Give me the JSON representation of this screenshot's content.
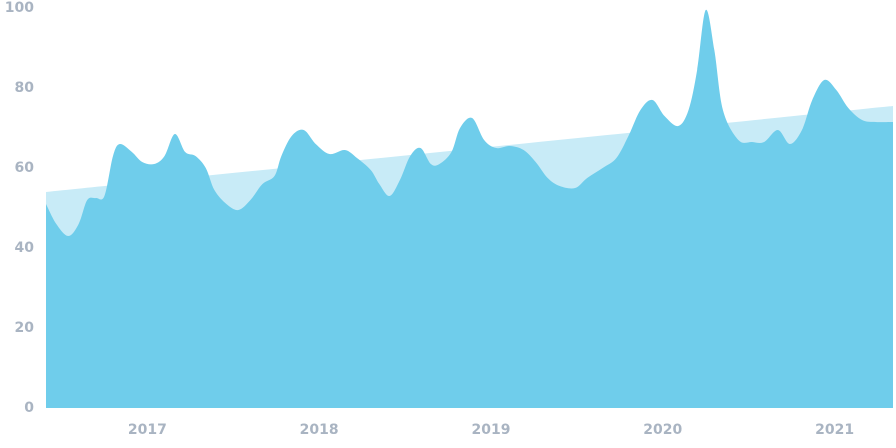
{
  "chart_data": {
    "type": "area",
    "xlim": [
      2016.41,
      2021.34
    ],
    "xticks": [
      2017,
      2018,
      2019,
      2020,
      2021
    ],
    "ylim": [
      0,
      100
    ],
    "yticks": [
      0,
      20,
      40,
      60,
      80,
      100
    ],
    "grid": false,
    "series": [
      {
        "color": "#c8ebf7",
        "x": [
          2016.41,
          2021.34
        ],
        "values": [
          54,
          75.5
        ]
      },
      {
        "color": "#6fcdeb",
        "x": [
          2016.41,
          2016.47,
          2016.54,
          2016.6,
          2016.65,
          2016.7,
          2016.75,
          2016.8,
          2016.84,
          2016.91,
          2016.97,
          2017.04,
          2017.1,
          2017.16,
          2017.22,
          2017.28,
          2017.34,
          2017.39,
          2017.46,
          2017.53,
          2017.6,
          2017.67,
          2017.74,
          2017.78,
          2017.84,
          2017.91,
          2017.98,
          2018.06,
          2018.15,
          2018.22,
          2018.3,
          2018.35,
          2018.41,
          2018.47,
          2018.53,
          2018.59,
          2018.65,
          2018.7,
          2018.77,
          2018.82,
          2018.89,
          2018.96,
          2019.03,
          2019.11,
          2019.19,
          2019.26,
          2019.33,
          2019.4,
          2019.49,
          2019.56,
          2019.65,
          2019.73,
          2019.8,
          2019.87,
          2019.94,
          2020.01,
          2020.09,
          2020.15,
          2020.2,
          2020.25,
          2020.3,
          2020.35,
          2020.44,
          2020.52,
          2020.59,
          2020.67,
          2020.74,
          2020.81,
          2020.87,
          2020.94,
          2021.01,
          2021.08,
          2021.16,
          2021.24,
          2021.34
        ],
        "values": [
          51,
          46,
          43,
          46,
          52,
          52.5,
          53,
          63,
          66,
          64,
          61.5,
          61,
          63,
          68.5,
          64,
          63,
          60,
          54.5,
          51,
          49.5,
          52,
          56,
          58,
          63,
          68,
          69.5,
          66,
          63.5,
          64.5,
          62.5,
          59.5,
          56,
          53,
          57,
          63,
          65,
          61,
          61,
          64,
          70,
          72.5,
          67,
          65,
          65.5,
          64.5,
          61.5,
          57.5,
          55.5,
          55,
          57.5,
          60,
          62.5,
          68,
          74.5,
          77,
          73,
          70.5,
          74.5,
          84.5,
          99.5,
          89.5,
          74.5,
          67,
          66.5,
          66.5,
          69.5,
          66,
          69.5,
          77,
          82,
          79.5,
          75,
          72,
          71.5,
          71.5
        ]
      }
    ]
  }
}
